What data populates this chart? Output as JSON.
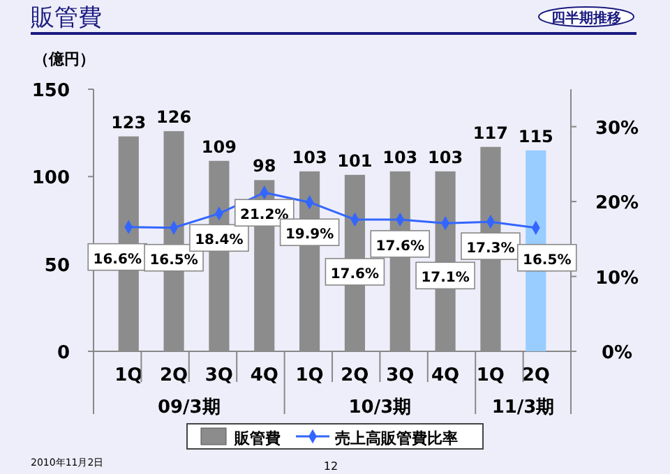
{
  "chart_data": {
    "type": "bar",
    "title": "販管費",
    "ylabel": "（億円）",
    "categories": [
      "1Q",
      "2Q",
      "3Q",
      "4Q",
      "1Q",
      "2Q",
      "3Q",
      "4Q",
      "1Q",
      "2Q"
    ],
    "series": [
      {
        "name": "販管費",
        "color": "#8c8c8c",
        "colors": [
          "#8c8c8c",
          "#8c8c8c",
          "#8c8c8c",
          "#8c8c8c",
          "#8c8c8c",
          "#8c8c8c",
          "#8c8c8c",
          "#8c8c8c",
          "#8c8c8c",
          "#99ccff"
        ],
        "values": [
          123,
          126,
          109,
          98,
          103,
          101,
          103,
          103,
          117,
          115
        ]
      },
      {
        "name": "売上高販管費比率",
        "type": "line",
        "axis": "y2",
        "color": "#3366ff",
        "values": [
          16.6,
          16.5,
          18.4,
          21.2,
          19.9,
          17.6,
          17.6,
          17.1,
          17.3,
          16.5
        ],
        "value_labels": [
          "16.6%",
          "16.5%",
          "18.4%",
          "21.2%",
          "19.9%",
          "17.6%",
          "17.6%",
          "17.1%",
          "17.3%",
          "16.5%"
        ]
      }
    ],
    "data_labels": true,
    "marker": "diamond",
    "legend": "bottom",
    "grid": false,
    "ylim": [
      0,
      150
    ],
    "yticks": [
      0,
      50,
      100,
      150
    ],
    "y2lim": [
      0,
      35
    ],
    "y2ticks": [
      {
        "value": 0,
        "label": "0%"
      },
      {
        "value": 10,
        "label": "10%"
      },
      {
        "value": 20,
        "label": "20%"
      },
      {
        "value": 30,
        "label": "30%"
      }
    ],
    "annotations": [
      "四半期推移",
      "09/3期",
      "10/3期",
      "11/3期",
      "2010年11月2日",
      "12"
    ]
  }
}
